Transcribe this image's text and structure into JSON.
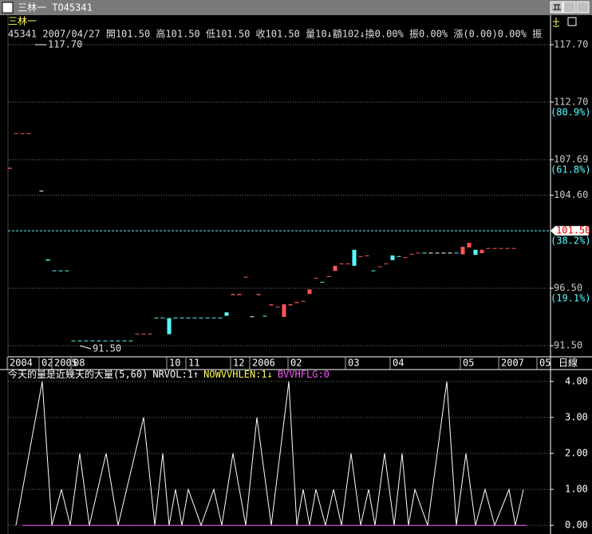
{
  "window": {
    "title": "三林一 TO45341",
    "header": "三林一",
    "quote": "45341 2007/04/27 開101.50 高101.50 低101.50 收101.50 量10↓額102↓換0.00% 振0.00% 漲(0.00)0.00% 振",
    "period": "日線"
  },
  "chart_data": [
    {
      "type": "candlestick",
      "xlim": [
        -1.5,
        84.75
      ],
      "ylim": [
        90.53,
        119.09
      ],
      "yticks": [
        {
          "value": 117.7,
          "label": "117.70"
        },
        {
          "value": 112.7,
          "label": "112.70"
        },
        {
          "value": 107.69,
          "label": "107.69"
        },
        {
          "value": 104.6,
          "label": "104.60"
        },
        {
          "value": 96.5,
          "label": "96.50"
        },
        {
          "value": 91.5,
          "label": "91.50"
        }
      ],
      "fib_levels": [
        {
          "value": 112.7,
          "label": "(80.9%)"
        },
        {
          "value": 107.69,
          "label": "(61.8%)"
        },
        {
          "value": 101.5,
          "label": "(38.2%)"
        },
        {
          "value": 96.5,
          "label": "(19.1%)"
        }
      ],
      "last_price": {
        "value": 101.5,
        "label": "101.50"
      },
      "high": {
        "index": 4,
        "value": 117.7,
        "label": "117.70"
      },
      "low": {
        "index": 11,
        "value": 91.5,
        "label": "91.50"
      },
      "x_labels": [
        {
          "index": 0,
          "label": "2004"
        },
        {
          "index": 5,
          "label": "02"
        },
        {
          "index": 7,
          "label": "2005"
        },
        {
          "index": 10,
          "label": "08"
        },
        {
          "index": 25,
          "label": "10"
        },
        {
          "index": 28,
          "label": "11"
        },
        {
          "index": 35,
          "label": "12"
        },
        {
          "index": 38,
          "label": "2006"
        },
        {
          "index": 44,
          "label": "02"
        },
        {
          "index": 53,
          "label": "03"
        },
        {
          "index": 60,
          "label": "04"
        },
        {
          "index": 71,
          "label": "05"
        },
        {
          "index": 77,
          "label": "2007"
        },
        {
          "index": 83,
          "label": "05"
        }
      ],
      "up_color": "#ff5555",
      "down_color": "#55ffff",
      "flat_color": "#ffffff",
      "open": [
        106.9,
        109.95,
        109.95,
        109.95,
        null,
        105.0,
        99.0,
        98.05,
        98.05,
        98.05,
        91.95,
        91.95,
        91.95,
        91.95,
        91.95,
        91.95,
        91.95,
        91.95,
        91.95,
        91.95,
        92.5,
        92.5,
        92.5,
        93.95,
        93.95,
        93.9,
        93.95,
        93.95,
        93.95,
        93.95,
        93.95,
        93.95,
        93.95,
        93.95,
        94.4,
        95.9,
        95.9,
        97.45,
        94.05,
        95.9,
        94.1,
        95.0,
        94.85,
        94.0,
        95.0,
        95.2,
        95.35,
        96.0,
        97.35,
        97.05,
        97.5,
        98.0,
        98.6,
        98.6,
        99.85,
        99.25,
        99.3,
        98.05,
        98.35,
        98.6,
        99.35,
        99.3,
        99.15,
        99.45,
        99.55,
        99.6,
        99.6,
        99.6,
        99.6,
        99.6,
        99.6,
        99.45,
        100.05,
        99.85,
        99.55,
        99.95,
        99.95,
        99.95,
        99.95,
        99.95
      ],
      "close": [
        107.0,
        110.0,
        110.0,
        110.0,
        null,
        105.0,
        98.9,
        98.0,
        98.0,
        98.0,
        91.9,
        91.9,
        91.9,
        91.9,
        91.9,
        91.9,
        91.9,
        91.9,
        91.9,
        91.9,
        92.55,
        92.55,
        92.55,
        93.9,
        93.9,
        92.5,
        93.9,
        93.9,
        93.9,
        93.9,
        93.9,
        93.9,
        93.9,
        93.9,
        94.1,
        96.0,
        96.0,
        97.5,
        94.05,
        96.0,
        94.05,
        95.1,
        94.9,
        95.1,
        95.1,
        95.3,
        95.4,
        96.4,
        97.4,
        97.0,
        97.55,
        98.45,
        98.65,
        98.65,
        98.45,
        99.3,
        99.35,
        98.0,
        98.4,
        98.65,
        98.95,
        99.25,
        99.2,
        99.5,
        99.6,
        99.55,
        99.6,
        99.6,
        99.6,
        99.6,
        99.55,
        100.1,
        100.45,
        99.4,
        99.85,
        100.0,
        100.0,
        100.0,
        100.0,
        100.0
      ]
    },
    {
      "type": "line",
      "title": "今天的量是近幾天的大量(5,60)",
      "xlim": [
        -1.5,
        84.75
      ],
      "ylim": [
        -0.24,
        4.33
      ],
      "yticks": [
        {
          "value": 4,
          "label": "4.00"
        },
        {
          "value": 3,
          "label": "3.00"
        },
        {
          "value": 2,
          "label": "2.00"
        },
        {
          "value": 1,
          "label": "1.00"
        },
        {
          "value": 0,
          "label": "0.00"
        }
      ],
      "series": [
        {
          "name": "NRVOL:1↑",
          "color": "#ffffff",
          "x": [
            1,
            5.125,
            6.625,
            8.125,
            9.5,
            11,
            12.5,
            15.125,
            17,
            21,
            22.75,
            24,
            25,
            26,
            27,
            28,
            30,
            32,
            33.25,
            35,
            37,
            38.75,
            41,
            43.75,
            45,
            46,
            47,
            48,
            49.5,
            50.75,
            52,
            53.5,
            55,
            56.25,
            57.25,
            58.75,
            60.25,
            61.5,
            62.5,
            63.5,
            65.5,
            68.5,
            70,
            71.5,
            73,
            74.5,
            76,
            78.25,
            79.25,
            80.5
          ],
          "values": [
            0,
            4,
            0,
            1,
            0,
            2,
            0,
            2,
            0,
            3,
            0,
            2,
            0,
            1,
            0,
            1,
            0,
            1,
            0,
            2,
            0,
            3,
            0,
            4,
            0,
            1,
            0,
            1,
            0,
            1,
            0,
            2,
            0,
            1,
            0,
            2,
            0,
            2,
            0,
            1,
            0,
            4,
            0,
            2,
            0,
            1,
            0,
            1,
            0,
            1
          ]
        },
        {
          "name": "NOWVVHLEN:1↓",
          "color": "#ffff55"
        },
        {
          "name": "BVVHFLG:0",
          "color": "#ff55ff",
          "x": [
            2,
            81
          ],
          "values": [
            0,
            0
          ]
        }
      ]
    }
  ]
}
